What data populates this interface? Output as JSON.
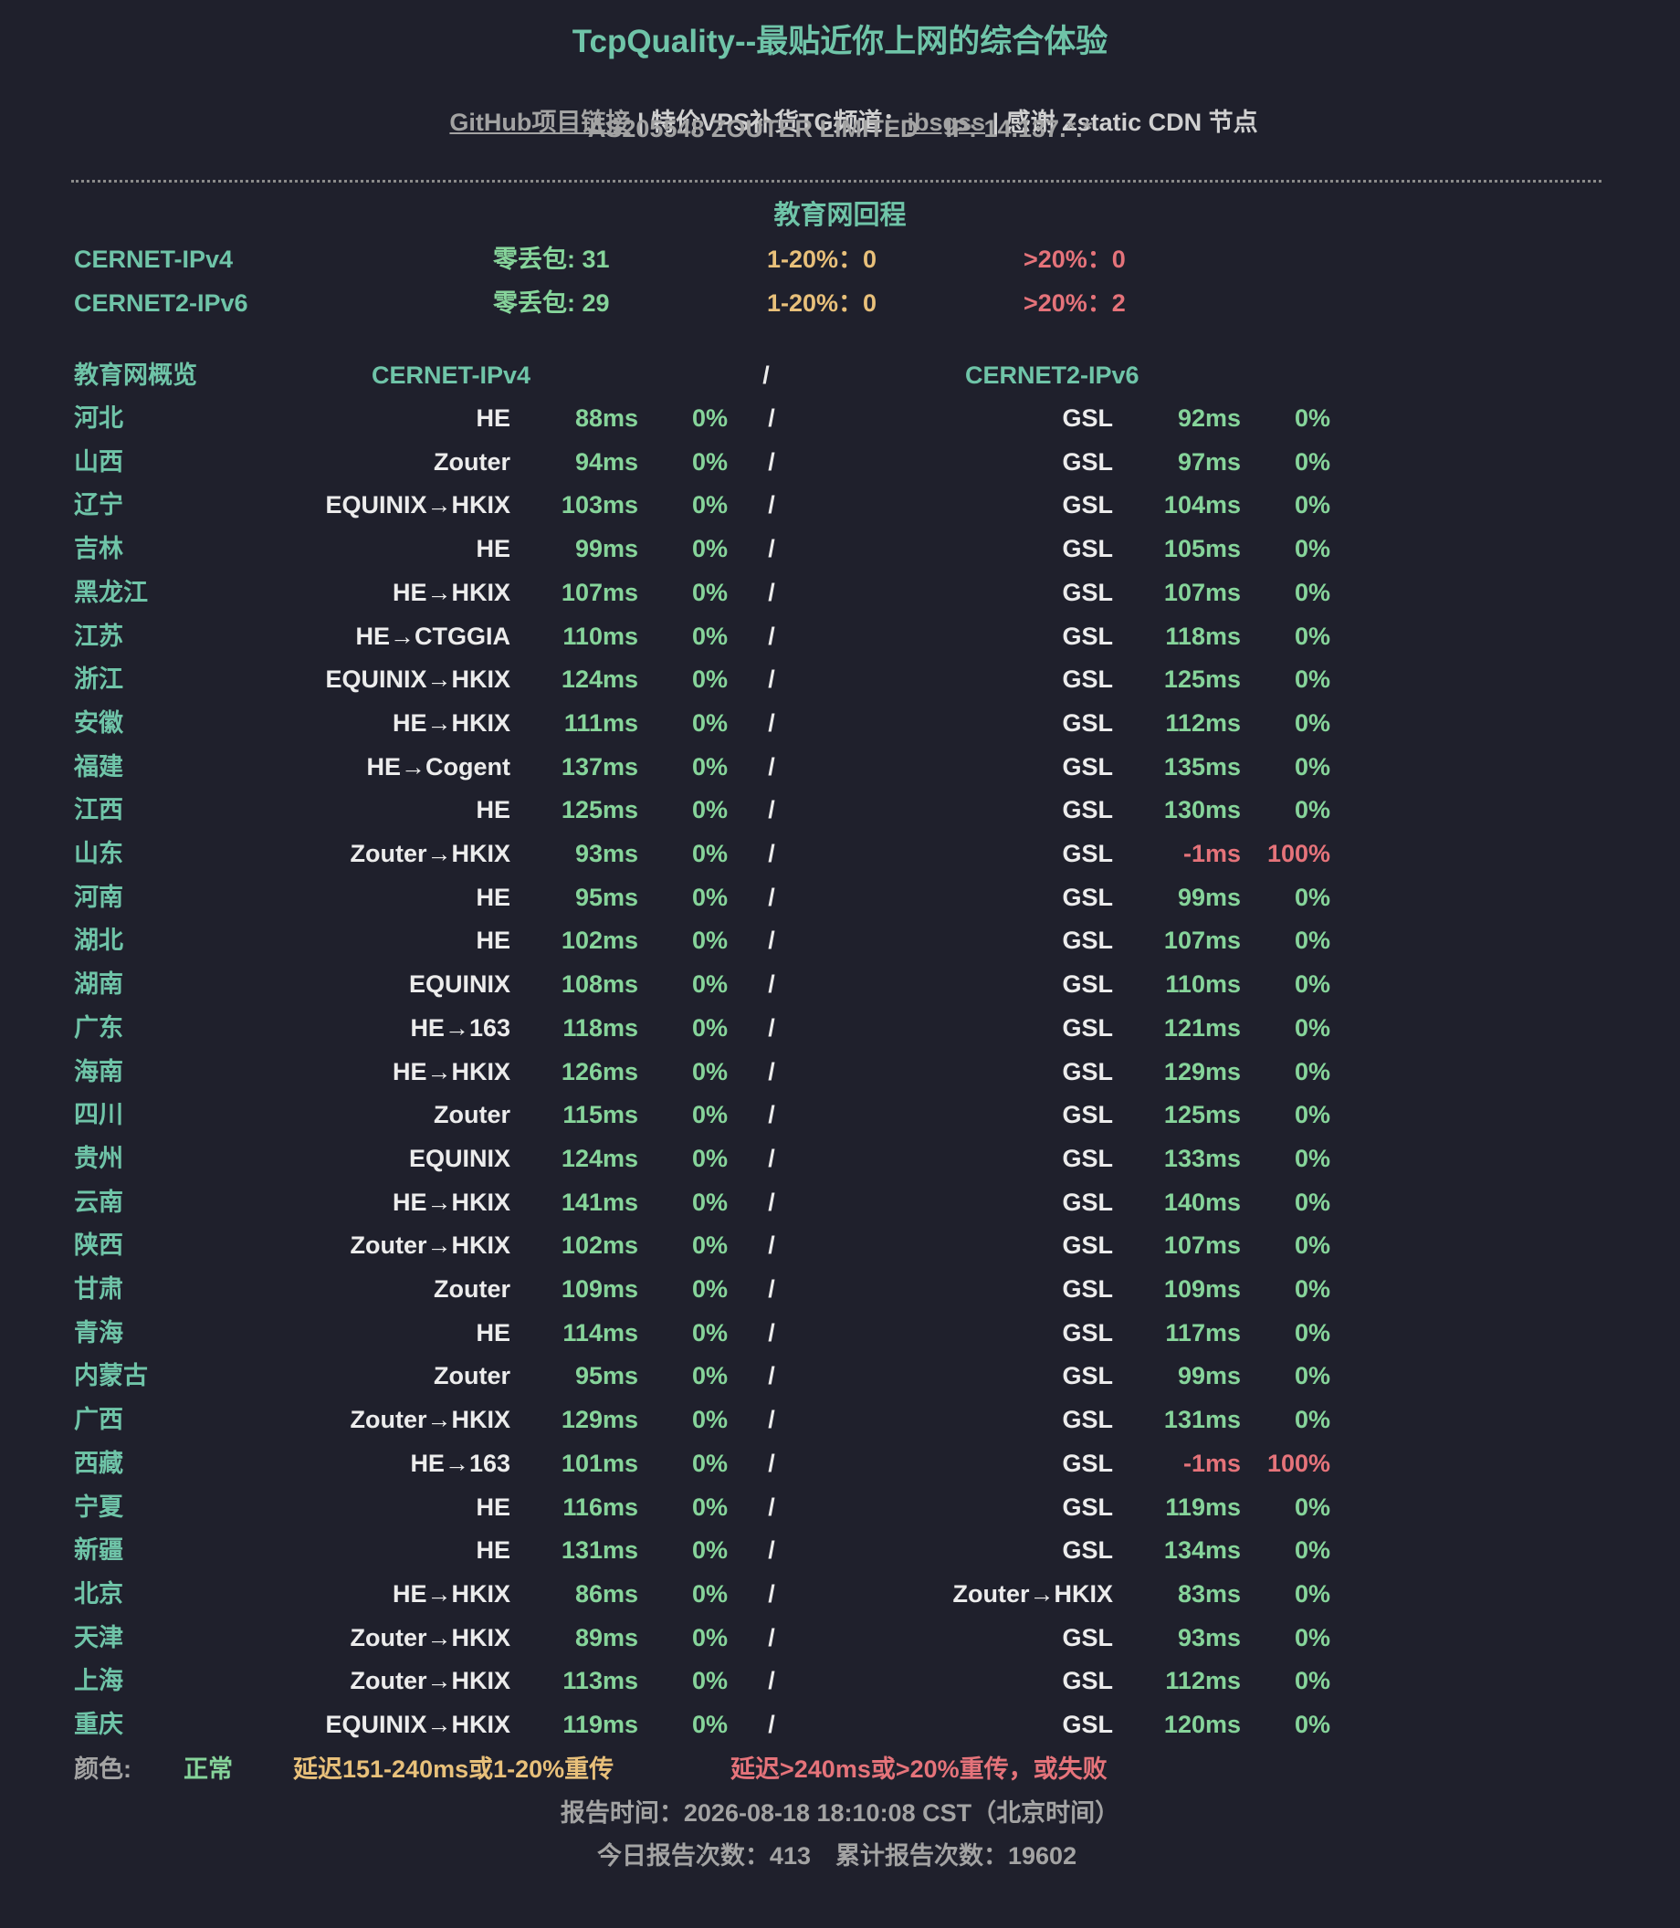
{
  "header": {
    "title": "TcpQuality--最贴近你上网的综合体验",
    "links": [
      "GitHub项目链接",
      " | 特价VPS补货TG频道：",
      "ibsgss",
      " | 感谢 Zstatic CDN 节点"
    ],
    "asn": "AS205548 ZOUTER LIMITED    IP: 14.137.*.*"
  },
  "section": {
    "title": "教育网回程",
    "summary": [
      [
        "CERNET-IPv4",
        "零丢包: 31",
        "1-20%：0",
        ">20%：0"
      ],
      [
        "CERNET2-IPv6",
        "零丢包: 29",
        "1-20%：0",
        ">20%：2"
      ]
    ],
    "header_row": [
      "教育网概览",
      "CERNET-IPv4",
      "/",
      "CERNET2-IPv6"
    ],
    "rows": [
      {
        "cells": [
          "河北",
          "HE",
          "88ms",
          "0%",
          "/",
          "GSL",
          "92ms",
          "0%"
        ],
        "colors": [
          "#86d49a",
          "#86d49a"
        ]
      },
      {
        "cells": [
          "山西",
          "Zouter",
          "94ms",
          "0%",
          "/",
          "GSL",
          "97ms",
          "0%"
        ],
        "colors": [
          "#86d49a",
          "#86d49a"
        ]
      },
      {
        "cells": [
          "辽宁",
          "EQUINIX→HKIX",
          "103ms",
          "0%",
          "/",
          "GSL",
          "104ms",
          "0%"
        ],
        "colors": [
          "#86d49a",
          "#86d49a"
        ]
      },
      {
        "cells": [
          "吉林",
          "HE",
          "99ms",
          "0%",
          "/",
          "GSL",
          "105ms",
          "0%"
        ],
        "colors": [
          "#86d49a",
          "#86d49a"
        ]
      },
      {
        "cells": [
          "黑龙江",
          "HE→HKIX",
          "107ms",
          "0%",
          "/",
          "GSL",
          "107ms",
          "0%"
        ],
        "colors": [
          "#86d49a",
          "#86d49a"
        ]
      },
      {
        "cells": [
          "江苏",
          "HE→CTGGIA",
          "110ms",
          "0%",
          "/",
          "GSL",
          "118ms",
          "0%"
        ],
        "colors": [
          "#86d49a",
          "#86d49a"
        ]
      },
      {
        "cells": [
          "浙江",
          "EQUINIX→HKIX",
          "124ms",
          "0%",
          "/",
          "GSL",
          "125ms",
          "0%"
        ],
        "colors": [
          "#86d49a",
          "#86d49a"
        ]
      },
      {
        "cells": [
          "安徽",
          "HE→HKIX",
          "111ms",
          "0%",
          "/",
          "GSL",
          "112ms",
          "0%"
        ],
        "colors": [
          "#86d49a",
          "#86d49a"
        ]
      },
      {
        "cells": [
          "福建",
          "HE→Cogent",
          "137ms",
          "0%",
          "/",
          "GSL",
          "135ms",
          "0%"
        ],
        "colors": [
          "#86d49a",
          "#86d49a"
        ]
      },
      {
        "cells": [
          "江西",
          "HE",
          "125ms",
          "0%",
          "/",
          "GSL",
          "130ms",
          "0%"
        ],
        "colors": [
          "#86d49a",
          "#86d49a"
        ]
      },
      {
        "cells": [
          "山东",
          "Zouter→HKIX",
          "93ms",
          "0%",
          "/",
          "GSL",
          "-1ms",
          "100%"
        ],
        "colors": [
          "#86d49a",
          "#e5737a"
        ]
      },
      {
        "cells": [
          "河南",
          "HE",
          "95ms",
          "0%",
          "/",
          "GSL",
          "99ms",
          "0%"
        ],
        "colors": [
          "#86d49a",
          "#86d49a"
        ]
      },
      {
        "cells": [
          "湖北",
          "HE",
          "102ms",
          "0%",
          "/",
          "GSL",
          "107ms",
          "0%"
        ],
        "colors": [
          "#86d49a",
          "#86d49a"
        ]
      },
      {
        "cells": [
          "湖南",
          "EQUINIX",
          "108ms",
          "0%",
          "/",
          "GSL",
          "110ms",
          "0%"
        ],
        "colors": [
          "#86d49a",
          "#86d49a"
        ]
      },
      {
        "cells": [
          "广东",
          "HE→163",
          "118ms",
          "0%",
          "/",
          "GSL",
          "121ms",
          "0%"
        ],
        "colors": [
          "#86d49a",
          "#86d49a"
        ]
      },
      {
        "cells": [
          "海南",
          "HE→HKIX",
          "126ms",
          "0%",
          "/",
          "GSL",
          "129ms",
          "0%"
        ],
        "colors": [
          "#86d49a",
          "#86d49a"
        ]
      },
      {
        "cells": [
          "四川",
          "Zouter",
          "115ms",
          "0%",
          "/",
          "GSL",
          "125ms",
          "0%"
        ],
        "colors": [
          "#86d49a",
          "#86d49a"
        ]
      },
      {
        "cells": [
          "贵州",
          "EQUINIX",
          "124ms",
          "0%",
          "/",
          "GSL",
          "133ms",
          "0%"
        ],
        "colors": [
          "#86d49a",
          "#86d49a"
        ]
      },
      {
        "cells": [
          "云南",
          "HE→HKIX",
          "141ms",
          "0%",
          "/",
          "GSL",
          "140ms",
          "0%"
        ],
        "colors": [
          "#86d49a",
          "#86d49a"
        ]
      },
      {
        "cells": [
          "陕西",
          "Zouter→HKIX",
          "102ms",
          "0%",
          "/",
          "GSL",
          "107ms",
          "0%"
        ],
        "colors": [
          "#86d49a",
          "#86d49a"
        ]
      },
      {
        "cells": [
          "甘肃",
          "Zouter",
          "109ms",
          "0%",
          "/",
          "GSL",
          "109ms",
          "0%"
        ],
        "colors": [
          "#86d49a",
          "#86d49a"
        ]
      },
      {
        "cells": [
          "青海",
          "HE",
          "114ms",
          "0%",
          "/",
          "GSL",
          "117ms",
          "0%"
        ],
        "colors": [
          "#86d49a",
          "#86d49a"
        ]
      },
      {
        "cells": [
          "内蒙古",
          "Zouter",
          "95ms",
          "0%",
          "/",
          "GSL",
          "99ms",
          "0%"
        ],
        "colors": [
          "#86d49a",
          "#86d49a"
        ]
      },
      {
        "cells": [
          "广西",
          "Zouter→HKIX",
          "129ms",
          "0%",
          "/",
          "GSL",
          "131ms",
          "0%"
        ],
        "colors": [
          "#86d49a",
          "#86d49a"
        ]
      },
      {
        "cells": [
          "西藏",
          "HE→163",
          "101ms",
          "0%",
          "/",
          "GSL",
          "-1ms",
          "100%"
        ],
        "colors": [
          "#86d49a",
          "#e5737a"
        ]
      },
      {
        "cells": [
          "宁夏",
          "HE",
          "116ms",
          "0%",
          "/",
          "GSL",
          "119ms",
          "0%"
        ],
        "colors": [
          "#86d49a",
          "#86d49a"
        ]
      },
      {
        "cells": [
          "新疆",
          "HE",
          "131ms",
          "0%",
          "/",
          "GSL",
          "134ms",
          "0%"
        ],
        "colors": [
          "#86d49a",
          "#86d49a"
        ]
      },
      {
        "cells": [
          "北京",
          "HE→HKIX",
          "86ms",
          "0%",
          "/",
          "Zouter→HKIX",
          "83ms",
          "0%"
        ],
        "colors": [
          "#86d49a",
          "#86d49a"
        ]
      },
      {
        "cells": [
          "天津",
          "Zouter→HKIX",
          "89ms",
          "0%",
          "/",
          "GSL",
          "93ms",
          "0%"
        ],
        "colors": [
          "#86d49a",
          "#86d49a"
        ]
      },
      {
        "cells": [
          "上海",
          "Zouter→HKIX",
          "113ms",
          "0%",
          "/",
          "GSL",
          "112ms",
          "0%"
        ],
        "colors": [
          "#86d49a",
          "#86d49a"
        ]
      },
      {
        "cells": [
          "重庆",
          "EQUINIX→HKIX",
          "119ms",
          "0%",
          "/",
          "GSL",
          "120ms",
          "0%"
        ],
        "colors": [
          "#86d49a",
          "#86d49a"
        ]
      }
    ]
  },
  "legend": {
    "label": "颜色:",
    "items": [
      {
        "text": "正常",
        "color": "#86d49a"
      },
      {
        "text": "延迟151-240ms或1-20%重传",
        "color": "#e8c07a"
      },
      {
        "text": "延迟>240ms或>20%重传，或失败",
        "color": "#e5737a"
      }
    ]
  },
  "footer": {
    "report_time": "报告时间：2026-08-18 18:10:08 CST（北京时间）",
    "today_count": "今日报告次数：413",
    "total_count": "累计报告次数：19602"
  }
}
